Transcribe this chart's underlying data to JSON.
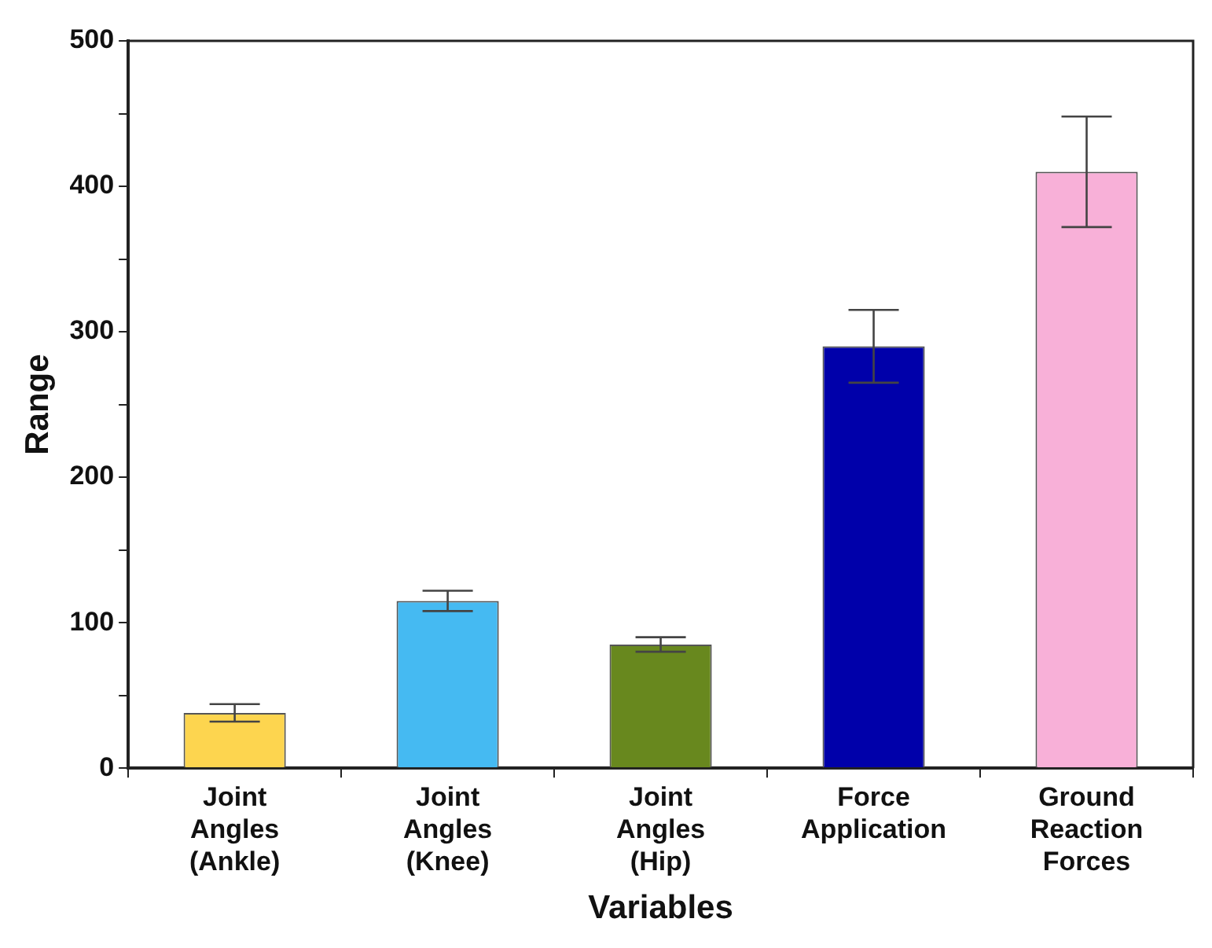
{
  "chart_data": {
    "type": "bar",
    "xlabel": "Variables",
    "ylabel": "Range",
    "categories": [
      "Joint Angles (Ankle)",
      "Joint Angles (Knee)",
      "Joint Angles (Hip)",
      "Force Application",
      "Ground Reaction Forces"
    ],
    "values": [
      38,
      115,
      85,
      290,
      410
    ],
    "errors": [
      6,
      7,
      5,
      25,
      38
    ],
    "colors": [
      "#fdd54f",
      "#45baf2",
      "#68881e",
      "#0000aa",
      "#f8b0d8"
    ],
    "ylim": [
      0,
      500
    ],
    "yticks": [
      0,
      {
        "value": 50,
        "label": null
      },
      100,
      {
        "value": 150,
        "label": null
      },
      200,
      {
        "value": 250,
        "label": null
      },
      300,
      {
        "value": 350,
        "label": null
      },
      400,
      {
        "value": 450,
        "label": null
      },
      500
    ],
    "grid": false,
    "legend": false
  }
}
